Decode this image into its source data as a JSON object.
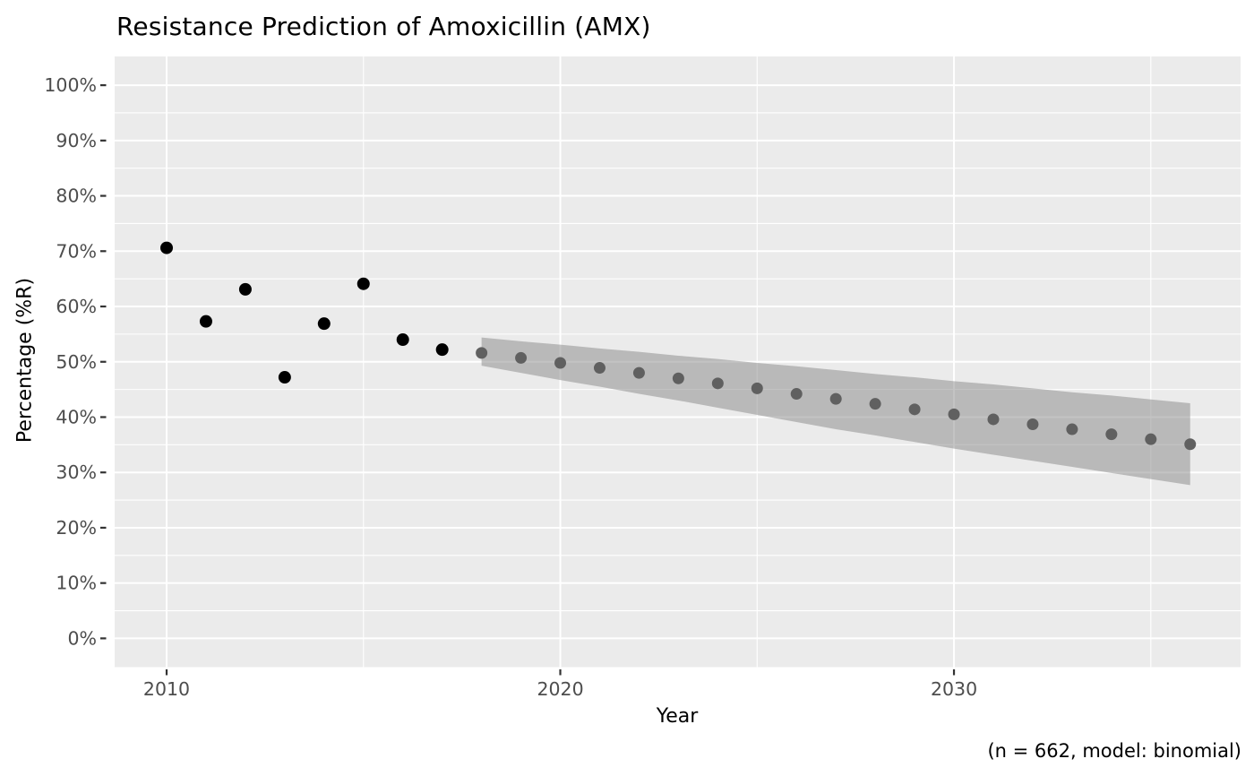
{
  "chart_data": {
    "type": "scatter",
    "title": "Resistance Prediction of Amoxicillin (AMX)",
    "xlabel": "Year",
    "ylabel": "Percentage (%R)",
    "caption": "(n = 662, model: binomial)",
    "legend": false,
    "grid": true,
    "panel_background": "#ebebeb",
    "gridline_color": "#ffffff",
    "tick_label_color": "#4d4d4d",
    "tick_mark_color": "#333333",
    "xlim": [
      2008.68,
      2037.28
    ],
    "ylim": [
      -5.2,
      105.2
    ],
    "x_ticks": [
      2010,
      2020,
      2030
    ],
    "x_tick_labels": [
      "2010",
      "2020",
      "2030"
    ],
    "x_minor_ticks": [
      2015,
      2025,
      2035
    ],
    "y_ticks": [
      0,
      10,
      20,
      30,
      40,
      50,
      60,
      70,
      80,
      90,
      100
    ],
    "y_tick_labels": [
      "0%",
      "10%",
      "20%",
      "30%",
      "40%",
      "50%",
      "60%",
      "70%",
      "80%",
      "90%",
      "100%"
    ],
    "y_minor_ticks": [
      5,
      15,
      25,
      35,
      45,
      55,
      65,
      75,
      85,
      95
    ],
    "series": [
      {
        "name": "observed",
        "color": "#000000",
        "radius": 7,
        "x": [
          2010,
          2011,
          2012,
          2013,
          2014,
          2015,
          2016,
          2017
        ],
        "y": [
          70.6,
          57.3,
          63.1,
          47.2,
          56.9,
          64.1,
          54.0,
          52.2
        ]
      },
      {
        "name": "predicted",
        "color": "#606060",
        "radius": 6.5,
        "x": [
          2018,
          2019,
          2020,
          2021,
          2022,
          2023,
          2024,
          2025,
          2026,
          2027,
          2028,
          2029,
          2030,
          2031,
          2032,
          2033,
          2034,
          2035,
          2036
        ],
        "y": [
          51.6,
          50.7,
          49.8,
          48.9,
          48.0,
          47.0,
          46.1,
          45.2,
          44.2,
          43.3,
          42.4,
          41.4,
          40.5,
          39.6,
          38.7,
          37.8,
          36.9,
          36.0,
          35.1
        ]
      }
    ],
    "ribbon": {
      "name": "confidence-interval",
      "color": "rgba(135,135,135,0.5)",
      "x": [
        2018,
        2019,
        2020,
        2021,
        2022,
        2023,
        2024,
        2025,
        2026,
        2027,
        2028,
        2029,
        2030,
        2031,
        2032,
        2033,
        2034,
        2035,
        2036
      ],
      "upper": [
        54.4,
        53.7,
        53.1,
        52.4,
        51.8,
        51.1,
        50.5,
        49.8,
        49.2,
        48.5,
        47.8,
        47.2,
        46.5,
        45.9,
        45.2,
        44.5,
        43.9,
        43.2,
        42.5
      ],
      "lower": [
        49.3,
        48.0,
        46.7,
        45.5,
        44.2,
        43.0,
        41.7,
        40.4,
        39.1,
        37.8,
        36.7,
        35.5,
        34.3,
        33.2,
        32.1,
        31.0,
        29.9,
        28.8,
        27.7
      ]
    }
  }
}
